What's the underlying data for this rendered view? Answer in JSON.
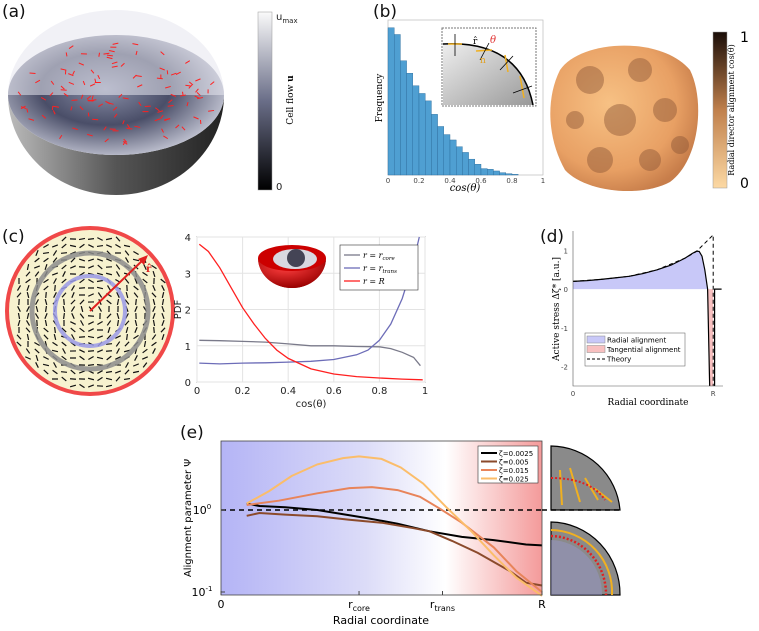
{
  "panels": {
    "a": {
      "label": "(a)",
      "colorbar": {
        "top": "u",
        "top_sub": "max",
        "bottom": "0",
        "title": "Cell flow ",
        "title_bold": "u"
      }
    },
    "b": {
      "label": "(b)",
      "colorbar": {
        "top": "1",
        "bottom": "0",
        "title": "Radial director alignment cos(θ)"
      },
      "inset": {
        "r_label": "r̂",
        "theta_label": "θ",
        "n_label": "n"
      }
    },
    "c": {
      "label": "(c)",
      "r_label": "r̂"
    },
    "d": {
      "label": "(d)"
    },
    "e": {
      "label": "(e)"
    }
  },
  "colors": {
    "hist_bar": "#4f9fd2",
    "red": "#ff2020",
    "purple": "#6d6db8",
    "gray": "#6f6f6f",
    "radial_fill": "#c8c8f8",
    "tangential_fill": "#f8c0c0"
  },
  "chart_data": [
    {
      "id": "b",
      "type": "bar",
      "xlabel": "cos(θ)",
      "ylabel": "Frequency",
      "xlim": [
        0,
        1
      ],
      "xticks": [
        "0",
        "0.2",
        "0.4",
        "0.6",
        "0.8",
        "1"
      ],
      "bin_width": 0.04,
      "bin_starts": [
        0,
        0.04,
        0.08,
        0.12,
        0.16,
        0.2,
        0.24,
        0.28,
        0.32,
        0.36,
        0.4,
        0.44,
        0.48,
        0.52,
        0.56,
        0.6,
        0.64,
        0.68,
        0.72,
        0.76,
        0.8
      ],
      "values": [
        437,
        417,
        339,
        302,
        265,
        242,
        220,
        180,
        144,
        120,
        104,
        84,
        67,
        47,
        32,
        19,
        17,
        12,
        7,
        4,
        2
      ]
    },
    {
      "id": "c",
      "type": "line",
      "xlabel": "cos(θ)",
      "ylabel": "PDF",
      "xlim": [
        0,
        1
      ],
      "ylim": [
        0,
        4
      ],
      "xticks": [
        "0",
        "0.2",
        "0.4",
        "0.6",
        "0.8",
        "1"
      ],
      "yticks": [
        "0",
        "1",
        "2",
        "3",
        "4"
      ],
      "grid": true,
      "legend": "top-right",
      "series": [
        {
          "name": "r = r",
          "sub": "core",
          "color": "#7a7a8a",
          "x": [
            0.01,
            0.1,
            0.2,
            0.3,
            0.4,
            0.5,
            0.6,
            0.7,
            0.8,
            0.85,
            0.9,
            0.95,
            0.98
          ],
          "y": [
            1.15,
            1.14,
            1.12,
            1.1,
            1.05,
            1.0,
            1.0,
            0.98,
            0.97,
            0.92,
            0.82,
            0.68,
            0.45
          ]
        },
        {
          "name": "r = r",
          "sub": "trans",
          "color": "#6d6db8",
          "x": [
            0.01,
            0.1,
            0.2,
            0.3,
            0.4,
            0.5,
            0.6,
            0.7,
            0.75,
            0.8,
            0.85,
            0.9,
            0.93,
            0.96,
            0.975
          ],
          "y": [
            0.52,
            0.5,
            0.52,
            0.53,
            0.55,
            0.57,
            0.62,
            0.75,
            0.88,
            1.15,
            1.6,
            2.3,
            2.9,
            3.6,
            4.0
          ]
        },
        {
          "name": "r = R",
          "sub": "",
          "color": "#ff2020",
          "x": [
            0.01,
            0.05,
            0.1,
            0.15,
            0.2,
            0.25,
            0.3,
            0.35,
            0.4,
            0.5,
            0.6,
            0.7,
            0.8,
            0.9,
            0.99
          ],
          "y": [
            3.8,
            3.6,
            3.15,
            2.6,
            2.05,
            1.6,
            1.2,
            0.88,
            0.65,
            0.36,
            0.22,
            0.15,
            0.11,
            0.08,
            0.06
          ]
        }
      ]
    },
    {
      "id": "d",
      "type": "area",
      "xlabel": "Radial coordinate",
      "ylabel": "Active stress Δζ* [a.u.]",
      "xlim": [
        0,
        1.07
      ],
      "ylim": [
        -2.5,
        1.5
      ],
      "xticks": [
        "0",
        "R"
      ],
      "yticks": [
        "-2",
        "-1",
        "0",
        "1"
      ],
      "legend": "bottom-left",
      "series": [
        {
          "name": "Radial alignment",
          "color": "#c8c8f8",
          "x": [
            0,
            0.1,
            0.2,
            0.3,
            0.4,
            0.5,
            0.6,
            0.7,
            0.8,
            0.85,
            0.88,
            0.9,
            0.92,
            0.94,
            0.96
          ],
          "y": [
            0.2,
            0.22,
            0.25,
            0.29,
            0.33,
            0.4,
            0.5,
            0.62,
            0.8,
            0.92,
            0.98,
            0.97,
            0.85,
            0.5,
            0.0
          ]
        },
        {
          "name": "Tangential alignment",
          "color": "#f8c0c0",
          "x": [
            0.96,
            0.97,
            1.0
          ],
          "y": [
            0,
            -2.5,
            -2.5
          ]
        },
        {
          "name": "Theory",
          "style": "dashed",
          "x": [
            0,
            0.2,
            0.4,
            0.6,
            0.8,
            0.88,
            1.0,
            1.0
          ],
          "y": [
            0.2,
            0.25,
            0.33,
            0.5,
            0.8,
            0.97,
            1.4,
            -2.5
          ]
        }
      ]
    },
    {
      "id": "e",
      "type": "line",
      "xlabel": "Radial coordinate",
      "ylabel": "Alignment parameter Ψ",
      "xlim": [
        0,
        1
      ],
      "ylim": [
        0.09,
        7
      ],
      "yscale": "log",
      "xticks": [
        {
          "v": 0,
          "t": "0",
          "s": ""
        },
        {
          "v": 0.43,
          "t": "r",
          "s": "core"
        },
        {
          "v": 0.69,
          "t": "r",
          "s": "trans"
        },
        {
          "v": 1,
          "t": "R",
          "s": ""
        }
      ],
      "yticks": [
        {
          "v": 1,
          "t": "10",
          "s": "0"
        },
        {
          "v": 0.1,
          "t": "10",
          "s": "-1"
        }
      ],
      "reference_line": 1,
      "legend": "top-right",
      "series": [
        {
          "name": "ζ=0.0025",
          "color": "#000000",
          "x": [
            0.08,
            0.12,
            0.2,
            0.3,
            0.45,
            0.55,
            0.65,
            0.75,
            0.85,
            0.95,
            1.0
          ],
          "y": [
            1.2,
            1.12,
            1.08,
            1.0,
            0.8,
            0.68,
            0.55,
            0.47,
            0.43,
            0.38,
            0.37
          ]
        },
        {
          "name": "ζ=0.005",
          "color": "#8b4a2b",
          "x": [
            0.08,
            0.12,
            0.2,
            0.3,
            0.4,
            0.5,
            0.6,
            0.65,
            0.72,
            0.8,
            0.9,
            0.95,
            1.0
          ],
          "y": [
            0.85,
            0.92,
            0.88,
            0.84,
            0.76,
            0.7,
            0.6,
            0.55,
            0.42,
            0.3,
            0.18,
            0.13,
            0.12
          ]
        },
        {
          "name": "ζ=0.015",
          "color": "#e8845a",
          "x": [
            0.08,
            0.18,
            0.3,
            0.4,
            0.47,
            0.55,
            0.62,
            0.68,
            0.75,
            0.85,
            0.92,
            1.0
          ],
          "y": [
            1.15,
            1.3,
            1.6,
            1.85,
            1.9,
            1.75,
            1.45,
            1.05,
            0.7,
            0.35,
            0.18,
            0.1
          ]
        },
        {
          "name": "ζ=0.025",
          "color": "#fbbd6a",
          "x": [
            0.08,
            0.15,
            0.22,
            0.3,
            0.38,
            0.43,
            0.5,
            0.56,
            0.63,
            0.7,
            0.78,
            0.85,
            0.92,
            1.0
          ],
          "y": [
            1.2,
            1.7,
            2.6,
            3.6,
            4.3,
            4.5,
            4.2,
            3.3,
            2.1,
            1.1,
            0.55,
            0.28,
            0.15,
            0.09
          ]
        }
      ]
    }
  ]
}
